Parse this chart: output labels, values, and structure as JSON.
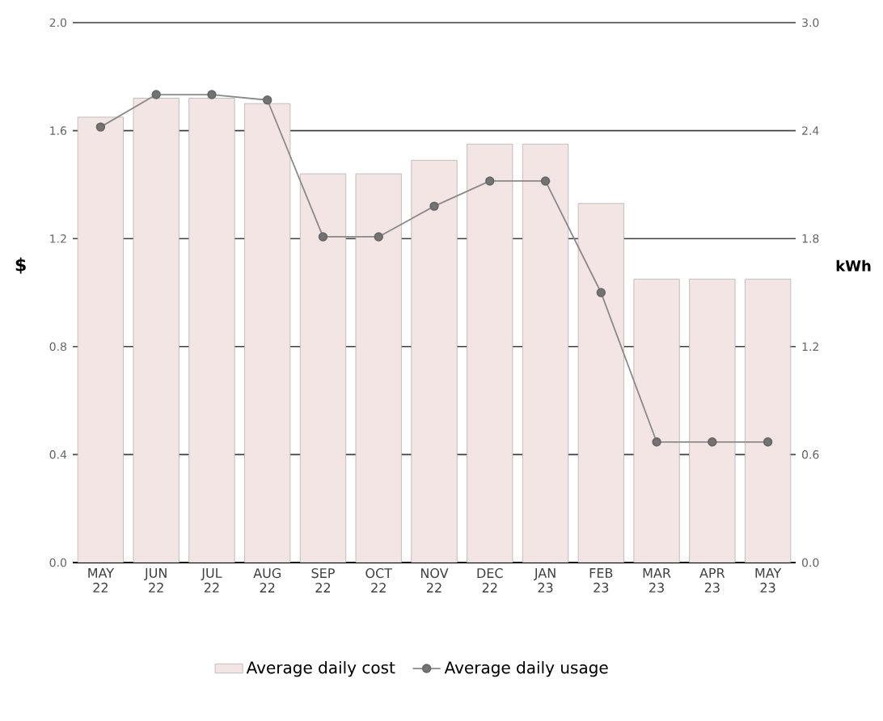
{
  "chart_data": {
    "type": "bar",
    "ylabel": "$",
    "y2label": "kWh",
    "categories": [
      "MAY 22",
      "JUN 22",
      "JUL 22",
      "AUG 22",
      "SEP 22",
      "OCT 22",
      "NOV 22",
      "DEC 22",
      "JAN 23",
      "FEB 23",
      "MAR 23",
      "APR 23",
      "MAY 23"
    ],
    "series": [
      {
        "name": "Average daily cost",
        "color": "#f3e5e3",
        "values": [
          1.65,
          1.72,
          1.72,
          1.7,
          1.44,
          1.44,
          1.49,
          1.55,
          1.55,
          1.33,
          1.05,
          1.05,
          1.05
        ]
      },
      {
        "name": "Average daily usage",
        "type": "line",
        "axis": "y2",
        "color": "#8a8a8a",
        "marker": "circle",
        "values": [
          2.42,
          2.6,
          2.6,
          2.57,
          1.81,
          1.81,
          1.98,
          2.12,
          2.12,
          1.5,
          0.67,
          0.67,
          0.67
        ]
      }
    ],
    "ylim": [
      0,
      2.0
    ],
    "yticks": [
      {
        "value": 0,
        "label": "0.0"
      },
      0.4,
      0.8,
      1.2,
      1.6,
      {
        "value": 2,
        "label": "2.0"
      }
    ],
    "y2lim": [
      0,
      3.0
    ],
    "y2ticks": [
      {
        "value": 0,
        "label": "0.0"
      },
      0.6,
      1.2,
      1.8,
      2.4,
      {
        "value": 3,
        "label": "3.0"
      }
    ],
    "grid": "y",
    "legend": "bottom"
  }
}
